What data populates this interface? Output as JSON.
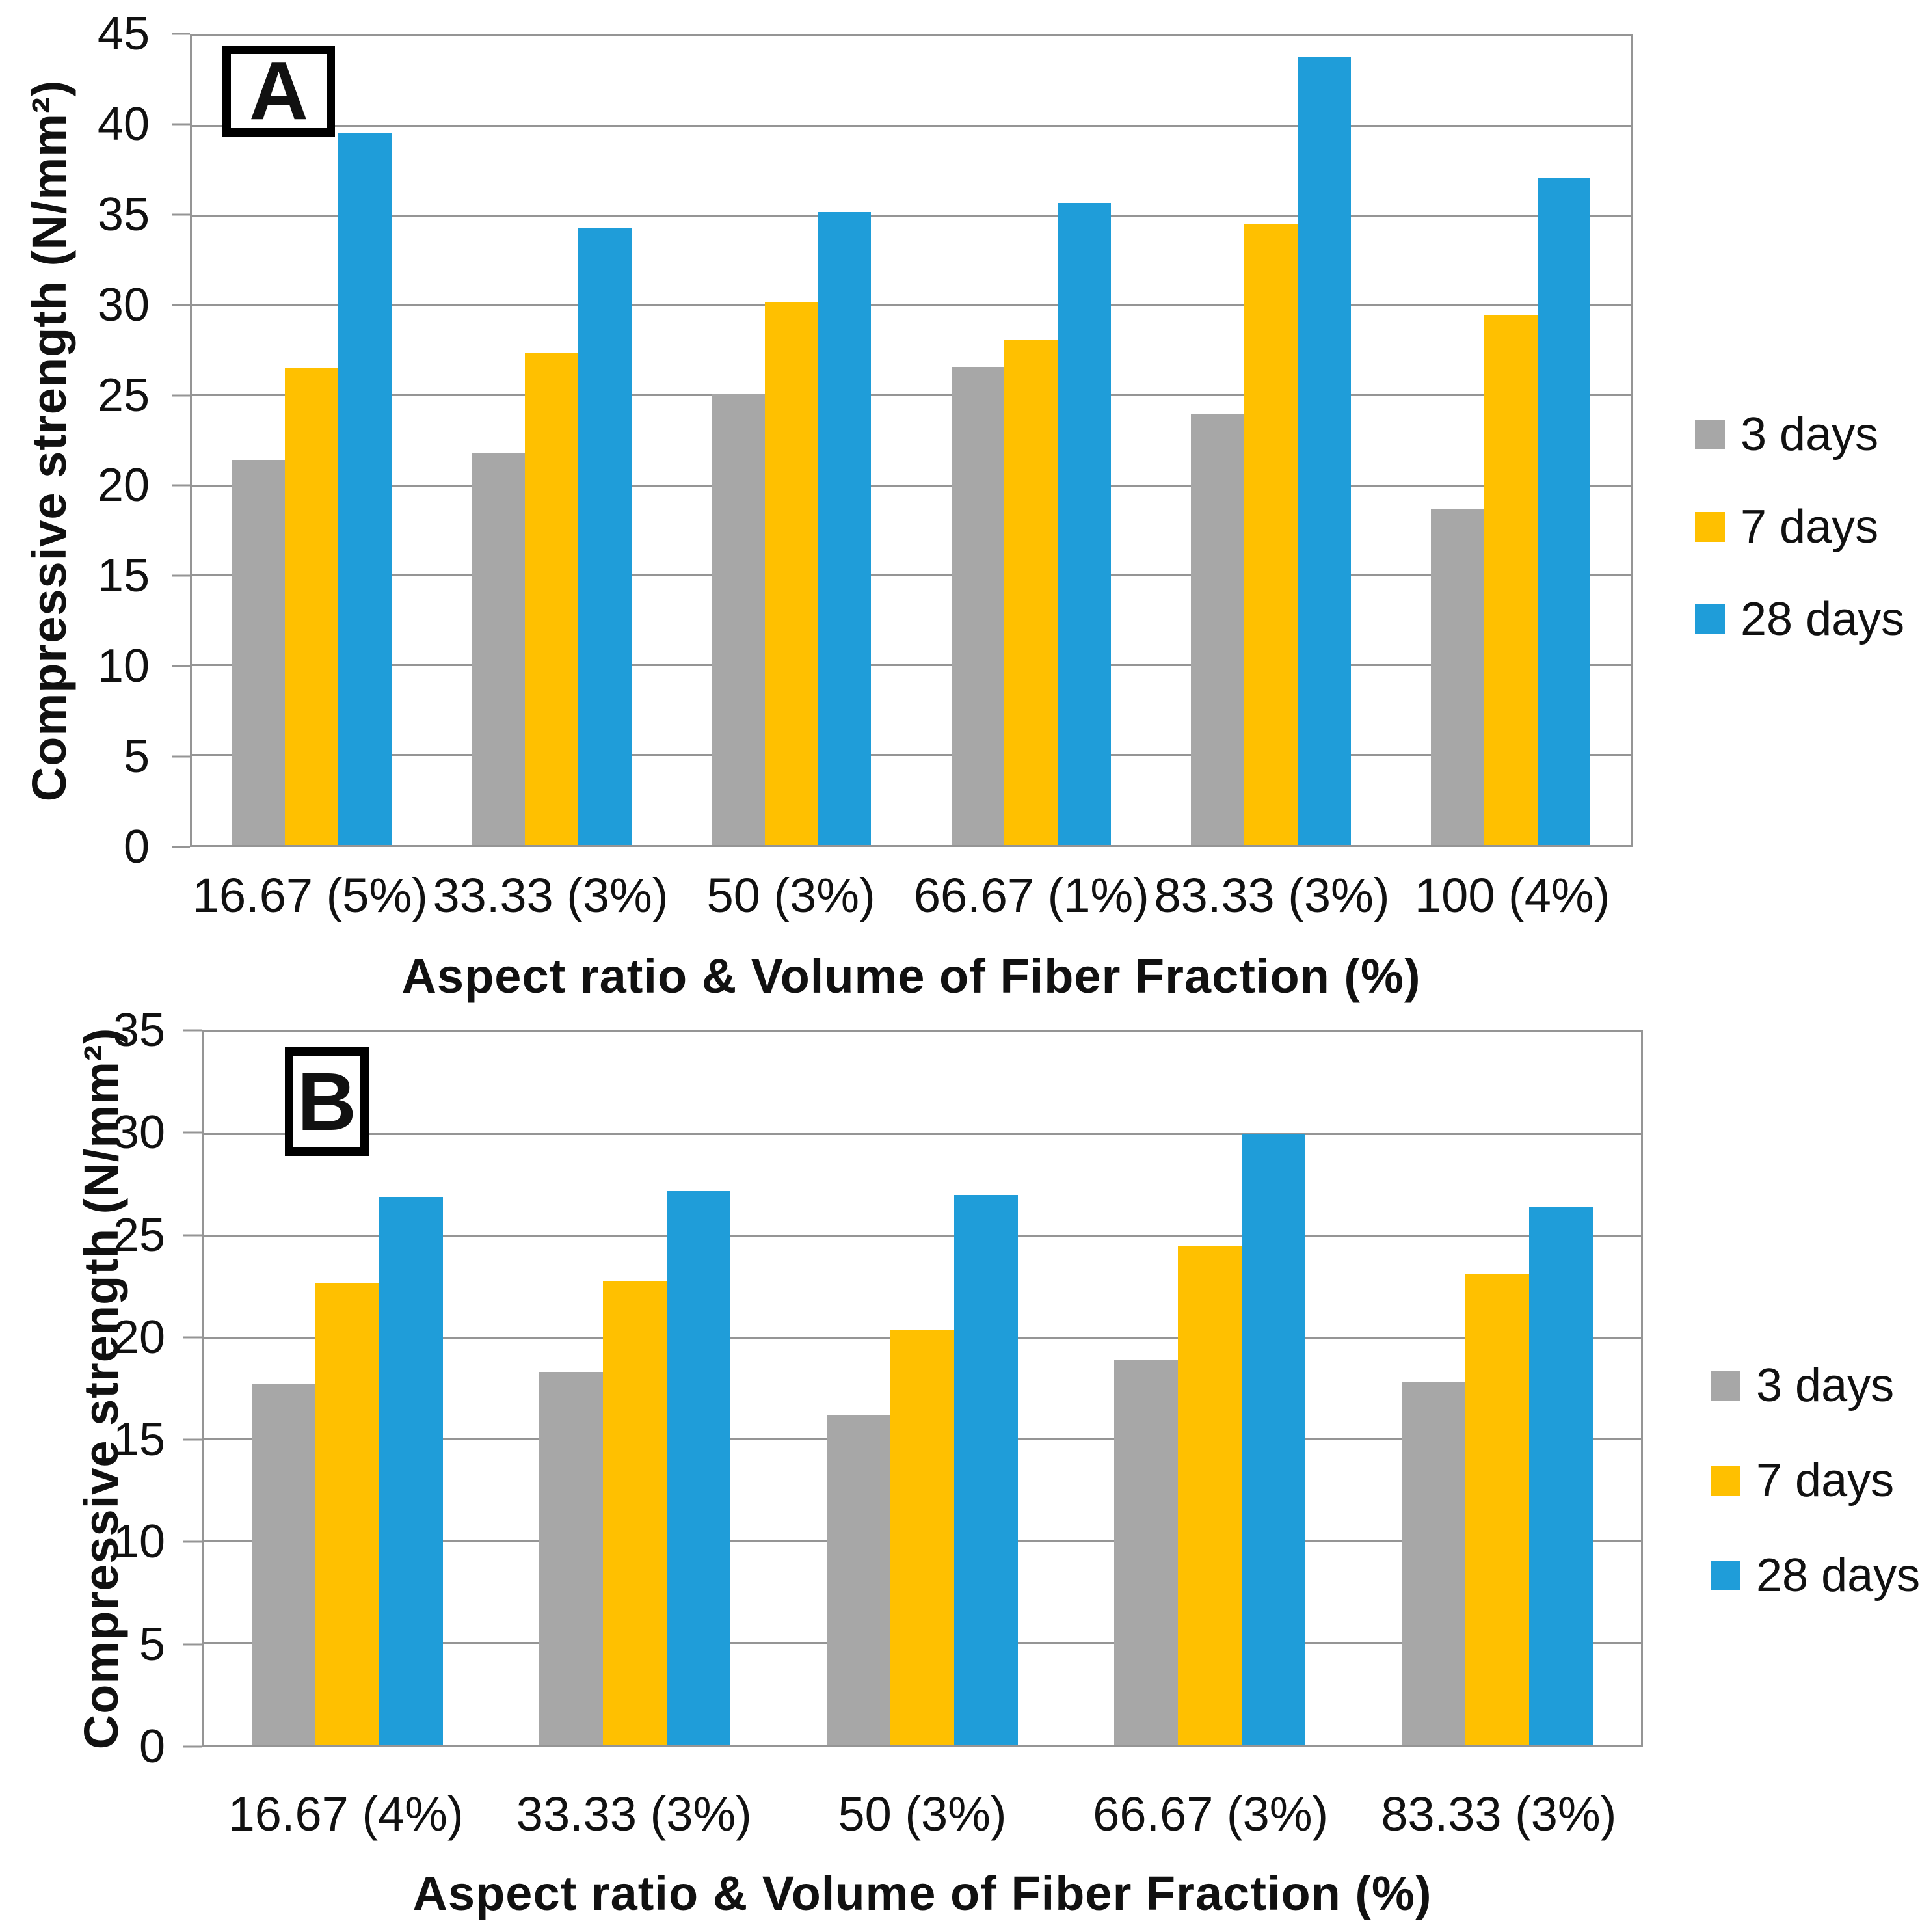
{
  "figure": {
    "panel_letters": [
      "A",
      "B"
    ],
    "background": "#ffffff",
    "gridline_color": "#959595",
    "text_color": "#111111"
  },
  "chart_data": [
    {
      "type": "bar",
      "panel": "A",
      "title": "",
      "xlabel": "Aspect ratio & Volume of Fiber Fraction (%)",
      "ylabel": "Compressive strength (N/mm²)",
      "ylim": [
        0,
        45
      ],
      "ystep": 5,
      "yticks": [
        0,
        5,
        10,
        15,
        20,
        25,
        30,
        35,
        40,
        45
      ],
      "grid": true,
      "legend_position": "right",
      "categories": [
        "16.67 (5%)",
        "33.33 (3%)",
        "50 (3%)",
        "66.67 (1%)",
        "83.33 (3%)",
        "100 (4%)"
      ],
      "series": [
        {
          "name": "3 days",
          "color": "#A7A7A7",
          "values": [
            21.4,
            21.8,
            25.1,
            26.6,
            24.0,
            18.7
          ]
        },
        {
          "name": "7 days",
          "color": "#FFC000",
          "values": [
            26.5,
            27.4,
            30.2,
            28.1,
            34.5,
            29.5
          ]
        },
        {
          "name": "28 days",
          "color": "#1F9DD9",
          "values": [
            39.6,
            34.3,
            35.2,
            35.7,
            43.8,
            37.1
          ]
        }
      ]
    },
    {
      "type": "bar",
      "panel": "B",
      "title": "",
      "xlabel": "Aspect ratio & Volume of Fiber Fraction (%)",
      "ylabel": "Compressive strength (N/mm²)",
      "ylim": [
        0,
        35
      ],
      "ystep": 5,
      "yticks": [
        0,
        5,
        10,
        15,
        20,
        25,
        30,
        35
      ],
      "grid": true,
      "legend_position": "right",
      "categories": [
        "16.67 (4%)",
        "33.33 (3%)",
        "50 (3%)",
        "66.67 (3%)",
        "83.33 (3%)"
      ],
      "series": [
        {
          "name": "3 days",
          "color": "#A7A7A7",
          "values": [
            17.7,
            18.3,
            16.2,
            18.9,
            17.8
          ]
        },
        {
          "name": "7 days",
          "color": "#FFC000",
          "values": [
            22.7,
            22.8,
            20.4,
            24.5,
            23.1
          ]
        },
        {
          "name": "28 days",
          "color": "#1F9DD9",
          "values": [
            26.9,
            27.2,
            27.0,
            30.0,
            26.4
          ]
        }
      ]
    }
  ]
}
